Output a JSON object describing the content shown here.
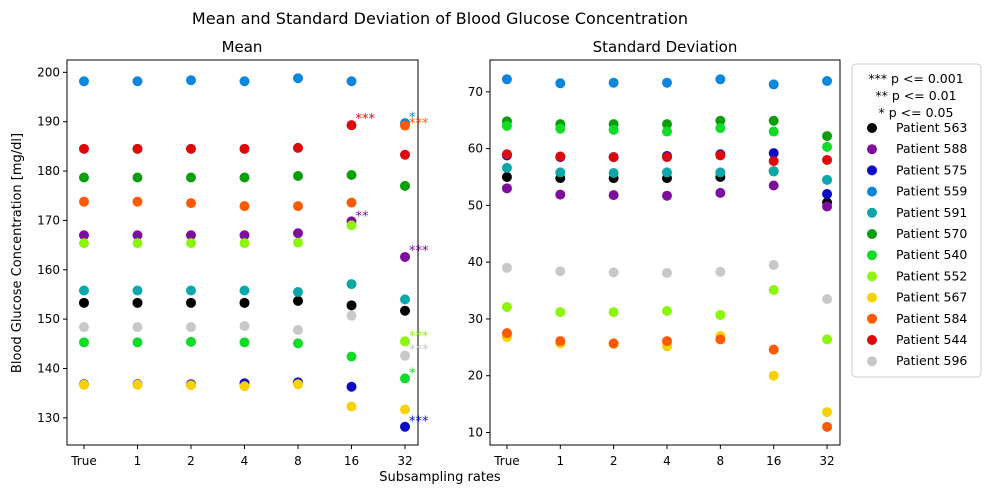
{
  "suptitle": "Mean and Standard Deviation of Blood Glucose Concentration",
  "shared_xlabel": "Subsampling rates",
  "legend": {
    "significance": [
      "*** p <= 0.001",
      "**  p <= 0.01",
      "*  p <= 0.05"
    ],
    "patients": [
      {
        "name": "Patient 563",
        "color": "#000000"
      },
      {
        "name": "Patient 588",
        "color": "#7e0f9e"
      },
      {
        "name": "Patient 575",
        "color": "#0a0ac8"
      },
      {
        "name": "Patient 559",
        "color": "#0a87dc"
      },
      {
        "name": "Patient 591",
        "color": "#0aa8a8"
      },
      {
        "name": "Patient 570",
        "color": "#0a9e0a"
      },
      {
        "name": "Patient 540",
        "color": "#10dc28"
      },
      {
        "name": "Patient 552",
        "color": "#8cf50a"
      },
      {
        "name": "Patient 567",
        "color": "#f5d200"
      },
      {
        "name": "Patient 584",
        "color": "#ff5a00"
      },
      {
        "name": "Patient 544",
        "color": "#dc0a0a"
      },
      {
        "name": "Patient 596",
        "color": "#c8c8c8"
      }
    ]
  },
  "chart_data": [
    {
      "type": "scatter",
      "title": "Mean",
      "ylabel": "Blood Glucose Concentration [mg/dl]",
      "categories": [
        "True",
        "1",
        "2",
        "4",
        "8",
        "16",
        "32"
      ],
      "yticks": [
        130,
        140,
        150,
        160,
        170,
        180,
        190,
        200
      ],
      "ylim": [
        124.5,
        202.5
      ],
      "grid": false,
      "series": [
        {
          "name": "Patient 563",
          "values": [
            153.3,
            153.3,
            153.3,
            153.3,
            153.7,
            152.8,
            151.7
          ]
        },
        {
          "name": "Patient 588",
          "values": [
            167.0,
            167.0,
            167.0,
            167.0,
            167.4,
            169.8,
            162.6
          ]
        },
        {
          "name": "Patient 575",
          "values": [
            136.8,
            136.8,
            136.8,
            137.0,
            137.2,
            136.3,
            128.2
          ]
        },
        {
          "name": "Patient 559",
          "values": [
            198.2,
            198.2,
            198.4,
            198.2,
            198.8,
            198.2,
            189.7
          ]
        },
        {
          "name": "Patient 591",
          "values": [
            155.8,
            155.8,
            155.8,
            155.8,
            155.5,
            157.1,
            154.0
          ]
        },
        {
          "name": "Patient 570",
          "values": [
            178.7,
            178.7,
            178.7,
            178.7,
            179.0,
            179.2,
            177.0
          ]
        },
        {
          "name": "Patient 540",
          "values": [
            145.3,
            145.3,
            145.4,
            145.3,
            145.1,
            142.4,
            138.0
          ]
        },
        {
          "name": "Patient 552",
          "values": [
            165.4,
            165.4,
            165.4,
            165.4,
            165.5,
            169.0,
            145.5
          ]
        },
        {
          "name": "Patient 567",
          "values": [
            136.7,
            136.7,
            136.6,
            136.4,
            136.8,
            132.3,
            131.7
          ]
        },
        {
          "name": "Patient 584",
          "values": [
            173.8,
            173.8,
            173.5,
            172.9,
            172.9,
            173.6,
            189.2
          ]
        },
        {
          "name": "Patient 544",
          "values": [
            184.5,
            184.5,
            184.5,
            184.5,
            184.7,
            189.3,
            183.3
          ]
        },
        {
          "name": "Patient 596",
          "values": [
            148.4,
            148.4,
            148.4,
            148.6,
            147.8,
            150.7,
            142.6
          ]
        }
      ],
      "annotations": [
        {
          "text": "***",
          "category": "16",
          "y": 190.5,
          "color": "#dc0a0a"
        },
        {
          "text": "**",
          "category": "16",
          "y": 170.8,
          "color": "#7e0f9e"
        },
        {
          "text": "*",
          "category": "32",
          "y": 190.9,
          "color": "#0a87dc"
        },
        {
          "text": "***",
          "category": "32",
          "y": 189.6,
          "color": "#ff5a00"
        },
        {
          "text": "***",
          "category": "32",
          "y": 163.8,
          "color": "#7e0f9e"
        },
        {
          "text": "***",
          "category": "32",
          "y": 146.5,
          "color": "#8cf50a"
        },
        {
          "text": "***",
          "category": "32",
          "y": 143.7,
          "color": "#c8c8c8"
        },
        {
          "text": "*",
          "category": "32",
          "y": 139.0,
          "color": "#10dc28"
        },
        {
          "text": "***",
          "category": "32",
          "y": 129.3,
          "color": "#0a0ac8"
        }
      ]
    },
    {
      "type": "scatter",
      "title": "Standard Deviation",
      "categories": [
        "True",
        "1",
        "2",
        "4",
        "8",
        "16",
        "32"
      ],
      "yticks": [
        10,
        20,
        30,
        40,
        50,
        60,
        70
      ],
      "ylim": [
        7.8,
        75.6
      ],
      "grid": false,
      "series": [
        {
          "name": "Patient 563",
          "values": [
            55.0,
            54.8,
            54.8,
            54.8,
            55.0,
            56.0,
            50.5
          ]
        },
        {
          "name": "Patient 588",
          "values": [
            53.0,
            51.9,
            51.8,
            51.7,
            52.2,
            53.5,
            49.8
          ]
        },
        {
          "name": "Patient 575",
          "values": [
            58.8,
            58.5,
            58.5,
            58.7,
            59.0,
            59.2,
            52.0
          ]
        },
        {
          "name": "Patient 559",
          "values": [
            72.2,
            71.5,
            71.6,
            71.6,
            72.2,
            71.3,
            71.9
          ]
        },
        {
          "name": "Patient 591",
          "values": [
            56.6,
            55.8,
            55.7,
            55.8,
            55.8,
            56.0,
            54.5
          ]
        },
        {
          "name": "Patient 570",
          "values": [
            64.8,
            64.3,
            64.3,
            64.3,
            64.9,
            64.9,
            62.2
          ]
        },
        {
          "name": "Patient 540",
          "values": [
            64.0,
            63.5,
            63.3,
            63.0,
            63.6,
            63.0,
            60.3
          ]
        },
        {
          "name": "Patient 552",
          "values": [
            32.1,
            31.2,
            31.2,
            31.4,
            30.7,
            35.1,
            26.4
          ]
        },
        {
          "name": "Patient 567",
          "values": [
            26.8,
            25.7,
            25.6,
            25.2,
            27.0,
            20.0,
            13.6
          ]
        },
        {
          "name": "Patient 584",
          "values": [
            27.5,
            26.1,
            25.7,
            26.1,
            26.4,
            24.6,
            11.0
          ]
        },
        {
          "name": "Patient 544",
          "values": [
            59.0,
            58.6,
            58.5,
            58.5,
            58.8,
            57.8,
            58.0
          ]
        },
        {
          "name": "Patient 596",
          "values": [
            39.0,
            38.4,
            38.2,
            38.1,
            38.3,
            39.5,
            33.5
          ]
        }
      ]
    }
  ]
}
